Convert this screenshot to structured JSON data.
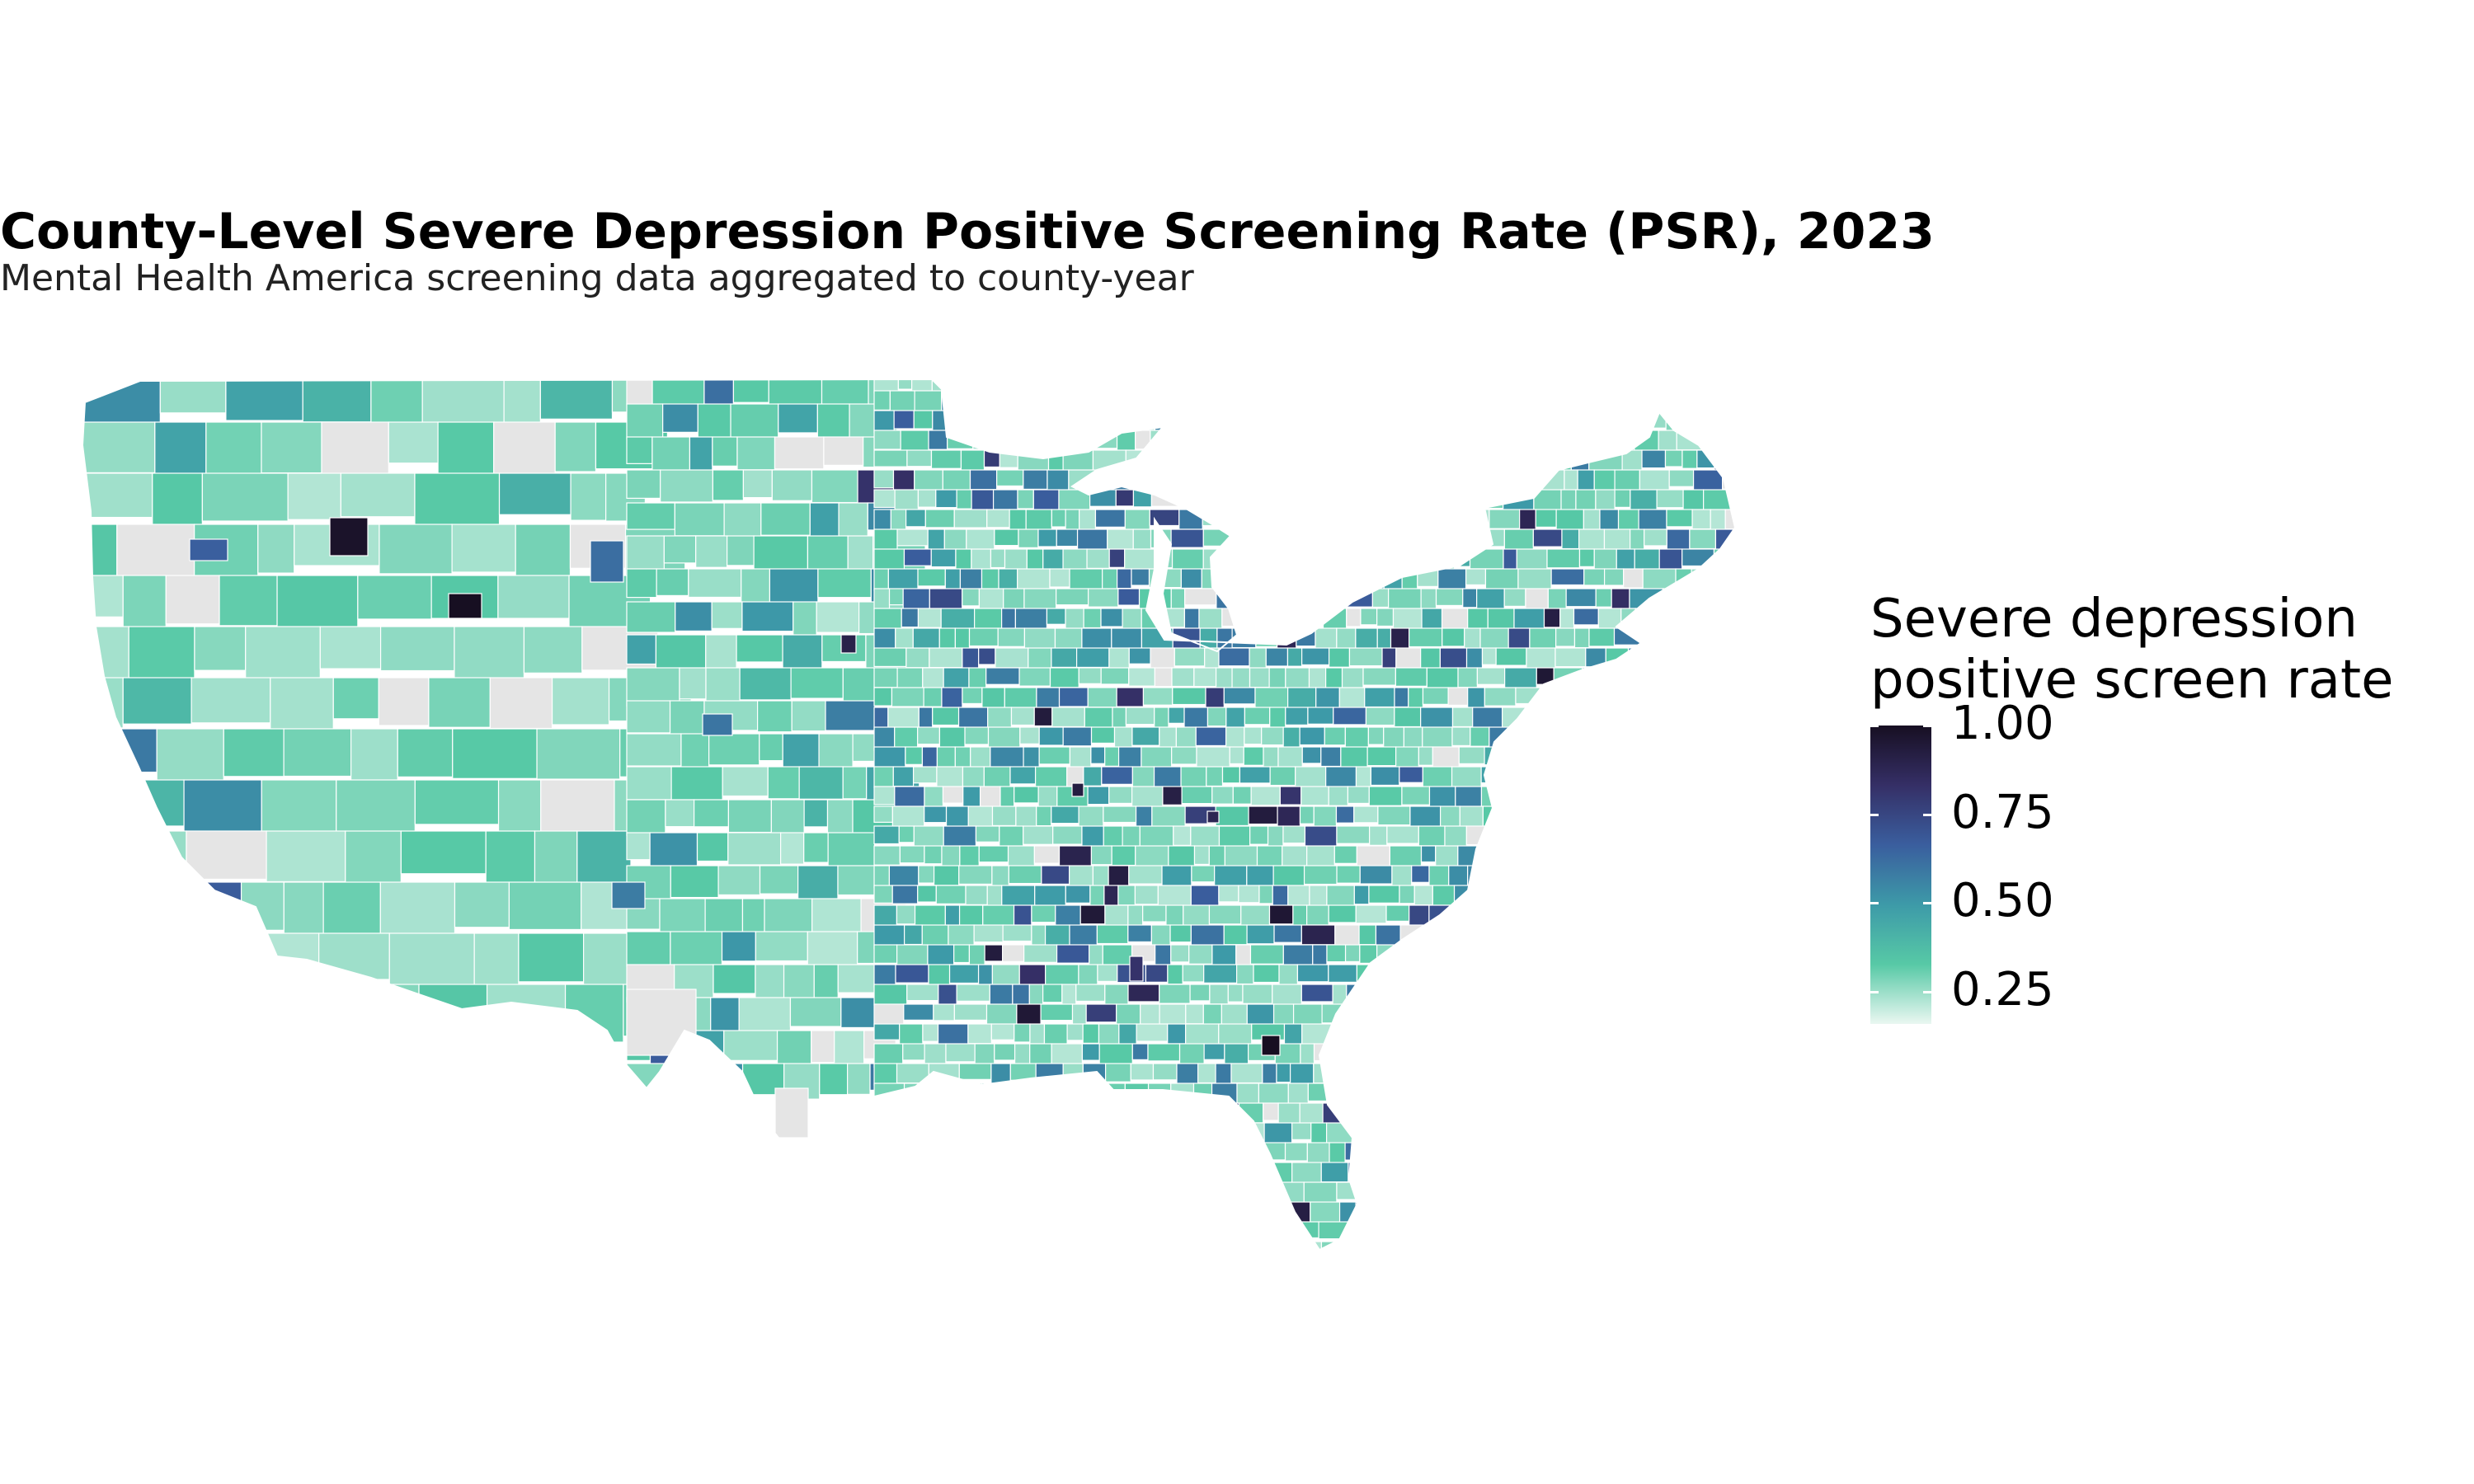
{
  "title": "County-Level Severe Depression Positive Screening Rate (PSR), 2023",
  "subtitle": "Mental Health America screening data aggregated to county-year",
  "legend": {
    "title_line1": "Severe depression",
    "title_line2": "positive screen rate",
    "ticks": [
      "1.00",
      "0.75",
      "0.50",
      "0.25"
    ],
    "tick_values": [
      1.0,
      0.75,
      0.5,
      0.25
    ],
    "range": [
      0.16,
      1.0
    ],
    "colors": [
      "#eaf7f1",
      "#57c9a6",
      "#3d9aa8",
      "#3a5e9e",
      "#352f66",
      "#170f22"
    ]
  },
  "map": {
    "region": "contiguous-united-states",
    "missing_color": "#e5e5e5",
    "county_border_color": "#ffffff"
  },
  "chart_data": {
    "type": "choropleth",
    "title": "County-Level Severe Depression Positive Screening Rate (PSR), 2023",
    "subtitle": "Mental Health America screening data aggregated to county-year",
    "value_label": "Severe depression positive screen rate",
    "scale_range": [
      0.16,
      1.0
    ],
    "scale_ticks": [
      0.25,
      0.5,
      0.75,
      1.0
    ],
    "missing": "grey"
  }
}
